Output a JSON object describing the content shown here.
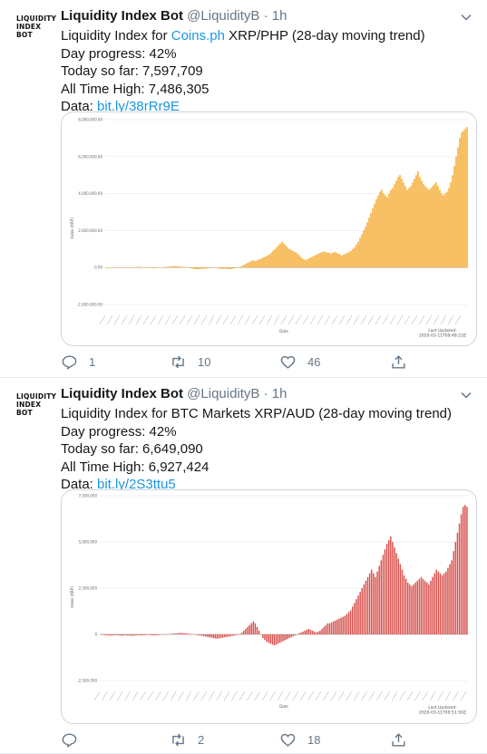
{
  "tweets": [
    {
      "avatar_text": "LIQUIDITY\nINDEX\nBOT",
      "name": "Liquidity Index Bot",
      "handle": "@LiquidityB",
      "sep": "·",
      "time": "1h",
      "line1_pre": "Liquidity Index for ",
      "line1_link": "Coins.ph",
      "line1_post": " XRP/PHP (28-day moving trend)",
      "progress": "Day progress: 42%",
      "today": "Today so far: 7,597,709",
      "ath": "All Time High: 7,486,305",
      "data_label": "Data: ",
      "data_link": "bit.ly/38rRr9E",
      "reply_count": "1",
      "retweet_count": "10",
      "like_count": "46"
    },
    {
      "avatar_text": "LIQUIDITY\nINDEX\nBOT",
      "name": "Liquidity Index Bot",
      "handle": "@LiquidityB",
      "sep": "·",
      "time": "1h",
      "line1_pre": "Liquidity Index for BTC Markets XRP/AUD (28-day moving trend)",
      "line1_link": "",
      "line1_post": "",
      "progress": "Day progress: 42%",
      "today": "Today so far: 6,649,090",
      "ath": "All Time High: 6,927,424",
      "data_label": "Data: ",
      "data_link": "bit.ly/2S3ttu5",
      "reply_count": "",
      "retweet_count": "2",
      "like_count": "18"
    }
  ],
  "icons": [
    "chevron-down-icon",
    "reply-icon",
    "retweet-icon",
    "like-icon",
    "share-icon"
  ],
  "colors": {
    "link": "#1b95e0",
    "muted": "#657786",
    "chart1_bar": "#f5a623",
    "chart2_bar": "#d9534f"
  },
  "chart_data": [
    {
      "type": "bar",
      "ylabel": "Index (XRP)",
      "xlabel": "Date",
      "footer": "Last Updated:\n2020-03-11T09:48:23Z",
      "ylim": [
        -2000000,
        8000000
      ],
      "yticks": [
        "8,000,000.00",
        "6,000,000.00",
        "4,000,000.00",
        "2,000,000.00",
        "0.00",
        "-2,000,000.00"
      ],
      "ytick_values": [
        8000000,
        6000000,
        4000000,
        2000000,
        0,
        -2000000
      ],
      "values": [
        0,
        0,
        0,
        0,
        0,
        0,
        0,
        0,
        0,
        0,
        0,
        0,
        0,
        0,
        0,
        10000,
        20000,
        30000,
        40000,
        30000,
        20000,
        10000,
        0,
        -10000,
        -20000,
        -30000,
        -40000,
        -30000,
        -20000,
        -10000,
        0,
        10000,
        20000,
        30000,
        40000,
        50000,
        60000,
        70000,
        80000,
        70000,
        60000,
        50000,
        40000,
        30000,
        20000,
        10000,
        0,
        -50000,
        -70000,
        -90000,
        -100000,
        -90000,
        -80000,
        -70000,
        -60000,
        -50000,
        -40000,
        -30000,
        -20000,
        -10000,
        0,
        -20000,
        -40000,
        -60000,
        -80000,
        -70000,
        -60000,
        -80000,
        -100000,
        -80000,
        -60000,
        -40000,
        -20000,
        0,
        50000,
        100000,
        150000,
        200000,
        250000,
        300000,
        350000,
        400000,
        350000,
        380000,
        420000,
        460000,
        500000,
        550000,
        600000,
        650000,
        700000,
        800000,
        900000,
        1000000,
        1100000,
        1200000,
        1300000,
        1400000,
        1300000,
        1200000,
        1100000,
        1000000,
        950000,
        900000,
        850000,
        800000,
        700000,
        600000,
        500000,
        450000,
        400000,
        450000,
        500000,
        550000,
        600000,
        650000,
        700000,
        750000,
        800000,
        850000,
        850000,
        850000,
        800000,
        800000,
        750000,
        800000,
        850000,
        800000,
        750000,
        700000,
        650000,
        700000,
        750000,
        800000,
        850000,
        900000,
        1000000,
        1100000,
        1250000,
        1400000,
        1600000,
        1800000,
        2000000,
        2200000,
        2450000,
        2700000,
        2950000,
        3200000,
        3450000,
        3700000,
        3900000,
        4100000,
        4200000,
        4000000,
        3900000,
        3800000,
        4000000,
        4200000,
        4300000,
        4500000,
        4700000,
        4900000,
        5000000,
        4800000,
        4600000,
        4400000,
        4200000,
        4300000,
        4400000,
        4600000,
        4800000,
        5000000,
        5200000,
        4900000,
        4700000,
        4500000,
        4400000,
        4300000,
        4200000,
        4300000,
        4400000,
        4500000,
        4600000,
        4400000,
        4200000,
        4000000,
        3900000,
        4000000,
        4100000,
        4300000,
        4600000,
        5000000,
        5500000,
        6000000,
        6500000,
        7000000,
        7300000,
        7400000,
        7500000,
        7600000
      ]
    },
    {
      "type": "bar",
      "ylabel": "Index (XRP)",
      "xlabel": "Date",
      "footer": "Last Updated:\n2020-03-11T09:51:50Z",
      "ylim": [
        -2500000,
        7500000
      ],
      "yticks": [
        "7,500,000",
        "5,000,000",
        "2,500,000",
        "0",
        "-2,500,000"
      ],
      "ytick_values": [
        7500000,
        5000000,
        2500000,
        0,
        -2500000
      ],
      "values": [
        -20000,
        -30000,
        -40000,
        -50000,
        -60000,
        -70000,
        -60000,
        -50000,
        -40000,
        -50000,
        -60000,
        -70000,
        -60000,
        -50000,
        -60000,
        -70000,
        -80000,
        -70000,
        -60000,
        -50000,
        -40000,
        -50000,
        -60000,
        -50000,
        -40000,
        -30000,
        -40000,
        -50000,
        -60000,
        -50000,
        -40000,
        -30000,
        -20000,
        -10000,
        0,
        10000,
        20000,
        30000,
        40000,
        50000,
        60000,
        70000,
        80000,
        70000,
        60000,
        50000,
        40000,
        30000,
        20000,
        0,
        -20000,
        -40000,
        -60000,
        -80000,
        -100000,
        -120000,
        -140000,
        -160000,
        -180000,
        -200000,
        -220000,
        -240000,
        -220000,
        -200000,
        -180000,
        -160000,
        -140000,
        -120000,
        -100000,
        -80000,
        -60000,
        -40000,
        -20000,
        0,
        100000,
        200000,
        300000,
        400000,
        500000,
        600000,
        700000,
        600000,
        400000,
        200000,
        0,
        -200000,
        -300000,
        -400000,
        -450000,
        -500000,
        -550000,
        -600000,
        -550000,
        -500000,
        -450000,
        -400000,
        -350000,
        -300000,
        -250000,
        -200000,
        -150000,
        -100000,
        -50000,
        0,
        50000,
        100000,
        150000,
        200000,
        250000,
        300000,
        250000,
        200000,
        150000,
        100000,
        150000,
        200000,
        300000,
        400000,
        500000,
        600000,
        600000,
        650000,
        700000,
        750000,
        800000,
        850000,
        900000,
        950000,
        1000000,
        1100000,
        1200000,
        1300000,
        1500000,
        1700000,
        1900000,
        2100000,
        2300000,
        2500000,
        2700000,
        2900000,
        3100000,
        3300000,
        3500000,
        3300000,
        3100000,
        3400000,
        3700000,
        4000000,
        4300000,
        4600000,
        4900000,
        5100000,
        5300000,
        5000000,
        4700000,
        4400000,
        4100000,
        3800000,
        3500000,
        3200000,
        3000000,
        2800000,
        2700000,
        2600000,
        2700000,
        2800000,
        2900000,
        3000000,
        3100000,
        3000000,
        2900000,
        2800000,
        2700000,
        2900000,
        3100000,
        3300000,
        3500000,
        3400000,
        3300000,
        3200000,
        3300000,
        3400000,
        3600000,
        3800000,
        4000000,
        4500000,
        5000000,
        5500000,
        6000000,
        6500000,
        6900000,
        7000000,
        6900000
      ]
    }
  ]
}
